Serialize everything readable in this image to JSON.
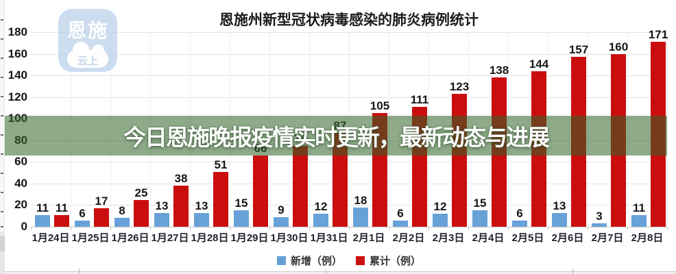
{
  "banner": {
    "text": "今日恩施晚报疫情实时更新，最新动态与进展",
    "bg_color": "rgba(50,100,40,0.55)",
    "text_color": "#ffffff"
  },
  "watermark": {
    "line1": "恩施",
    "line2": "云上",
    "bg_color": "#b9d0ea"
  },
  "chart_data": {
    "type": "bar",
    "title": "恩施州新型冠状病毒感染的肺炎病例统计",
    "categories": [
      "1月24日",
      "1月25日",
      "1月26日",
      "1月27日",
      "1月28日",
      "1月29日",
      "1月30日",
      "1月31日",
      "2月1日",
      "2月2日",
      "2月3日",
      "2月4日",
      "2月5日",
      "2月6日",
      "2月7日",
      "2月8日"
    ],
    "series": [
      {
        "name": "新增（例）",
        "color": "#68a1d7",
        "values": [
          11,
          6,
          8,
          13,
          13,
          15,
          9,
          12,
          18,
          6,
          12,
          15,
          6,
          13,
          3,
          11
        ]
      },
      {
        "name": "累计（例）",
        "color": "#ca0e0e",
        "values": [
          11,
          17,
          25,
          38,
          51,
          66,
          75,
          87,
          105,
          111,
          123,
          138,
          144,
          157,
          160,
          171
        ]
      }
    ],
    "xlabel": "",
    "ylabel": "",
    "ylim": [
      0,
      180
    ],
    "ytick_step": 20,
    "grid": true,
    "legend_position": "bottom",
    "data_labels": true
  }
}
